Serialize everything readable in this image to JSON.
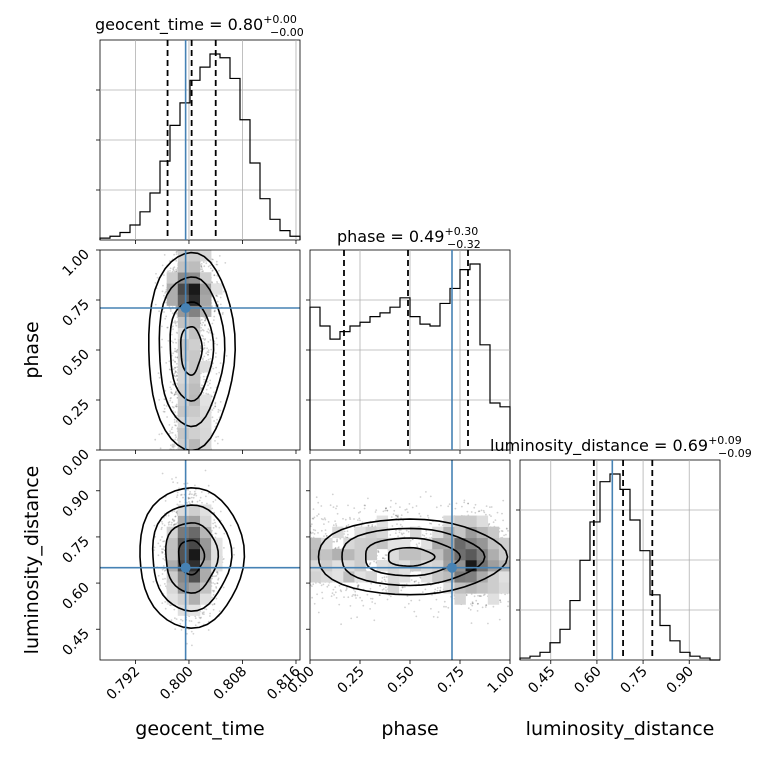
{
  "chart_data": {
    "type": "corner",
    "parameters": [
      "geocent_time",
      "phase",
      "luminosity_distance"
    ],
    "truths": [
      0.7995,
      0.71,
      0.65
    ],
    "truth_color": "#4682b4",
    "ranges": [
      [
        0.7867,
        0.8166
      ],
      [
        0.0,
        1.0
      ],
      [
        0.35,
        1.0
      ]
    ],
    "marginals": [
      {
        "name": "geocent_time",
        "title_value": "0.80",
        "title_plus": "+0.00",
        "title_minus": "−0.00",
        "quantiles": [
          0.7968,
          0.8004,
          0.804
        ],
        "ticks": [
          0.792,
          0.8,
          0.808,
          0.816
        ],
        "tick_labels": [
          "0.792",
          "0.800",
          "0.808",
          "0.816"
        ],
        "hist": [
          0.01,
          0.02,
          0.04,
          0.08,
          0.15,
          0.25,
          0.42,
          0.61,
          0.73,
          0.85,
          0.92,
          0.99,
          0.97,
          0.86,
          0.64,
          0.41,
          0.22,
          0.11,
          0.05,
          0.02
        ]
      },
      {
        "name": "phase",
        "title_value": "0.49",
        "title_plus": "+0.30",
        "title_minus": "−0.32",
        "quantiles": [
          0.17,
          0.49,
          0.79
        ],
        "ticks": [
          0.0,
          0.25,
          0.5,
          0.75,
          1.0
        ],
        "tick_labels": [
          "0.00",
          "0.25",
          "0.50",
          "0.75",
          "1.00"
        ],
        "hist": [
          0.76,
          0.66,
          0.59,
          0.63,
          0.66,
          0.68,
          0.71,
          0.73,
          0.76,
          0.81,
          0.71,
          0.67,
          0.66,
          0.78,
          0.86,
          0.96,
          0.99,
          0.56,
          0.25,
          0.23
        ]
      },
      {
        "name": "luminosity_distance",
        "title_value": "0.69",
        "title_plus": "+0.09",
        "title_minus": "−0.09",
        "quantiles": [
          0.59,
          0.685,
          0.78
        ],
        "ticks": [
          0.45,
          0.6,
          0.75,
          0.9
        ],
        "tick_labels": [
          "0.45",
          "0.60",
          "0.75",
          "0.90"
        ],
        "hist": [
          0.01,
          0.02,
          0.04,
          0.09,
          0.16,
          0.31,
          0.52,
          0.72,
          0.93,
          0.97,
          0.89,
          0.73,
          0.57,
          0.34,
          0.18,
          0.1,
          0.04,
          0.02,
          0.01,
          0.0
        ]
      }
    ],
    "pair_ticks": {
      "phase_y": [
        0.0,
        0.25,
        0.5,
        0.75,
        1.0
      ],
      "phase_y_labels": [
        "0.00",
        "0.25",
        "0.50",
        "0.75",
        "1.00"
      ],
      "dist_y": [
        0.45,
        0.6,
        0.75,
        0.9
      ],
      "dist_y_labels": [
        "0.45",
        "0.60",
        "0.75",
        "0.90"
      ]
    },
    "grid": true
  }
}
